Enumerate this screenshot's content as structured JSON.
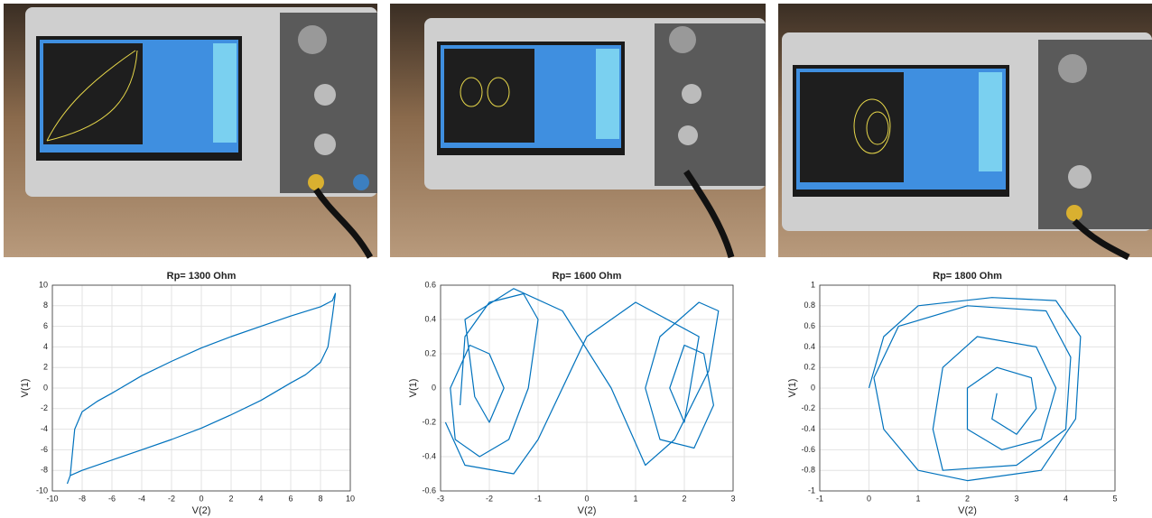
{
  "chart_data": [
    {
      "type": "line",
      "title": "Rp= 1300 Ohm",
      "x_label": "V(2)",
      "y_label": "V(1)",
      "x": [
        -9,
        -8.8,
        -8.5,
        -8,
        -7,
        -6,
        -4,
        -2,
        0,
        2,
        4,
        6,
        8,
        8.8,
        9,
        8.8,
        8.5,
        8,
        7,
        6,
        4,
        2,
        0,
        -2,
        -4,
        -6,
        -8,
        -8.8,
        -9
      ],
      "series": [
        {
          "name": "V(1)",
          "color": "#0072bd",
          "values": [
            -9.3,
            -8.5,
            -4,
            -2.3,
            -1.3,
            -0.5,
            1.2,
            2.6,
            3.9,
            5,
            6,
            7,
            7.9,
            8.5,
            9.2,
            7,
            4,
            2.5,
            1.3,
            0.5,
            -1.2,
            -2.6,
            -3.9,
            -5,
            -6,
            -7,
            -8,
            -8.5,
            -9.3
          ]
        }
      ],
      "xlim": [
        -10,
        10
      ],
      "xticks": [
        -10,
        -8,
        -6,
        -4,
        -2,
        0,
        2,
        4,
        6,
        8,
        10
      ],
      "ylim": [
        -10,
        10
      ],
      "yticks": [
        -10,
        -8,
        -6,
        -4,
        -2,
        0,
        2,
        4,
        6,
        8,
        10
      ],
      "grid": true
    },
    {
      "type": "line",
      "title": "Rp= 1600 Ohm",
      "x_label": "V(2)",
      "y_label": "V(1)",
      "x": [
        -2.6,
        -2.5,
        -2,
        -1.3,
        -1,
        -1.2,
        -1.6,
        -2.2,
        -2.7,
        -2.8,
        -2.4,
        -2,
        -1.7,
        -2,
        -2.3,
        -2.5,
        -1.5,
        -0.5,
        0.5,
        1.2,
        1.8,
        2.5,
        2.7,
        2.3,
        1.5,
        1.2,
        1.5,
        2.2,
        2.6,
        2.4,
        2,
        1.7,
        2,
        2.3,
        1,
        0,
        -1,
        -1.5,
        -2.5,
        -2.9
      ],
      "series": [
        {
          "name": "V(1)",
          "color": "#0072bd",
          "values": [
            -0.1,
            0.3,
            0.5,
            0.55,
            0.4,
            0,
            -0.3,
            -0.4,
            -0.3,
            0,
            0.25,
            0.2,
            0,
            -0.2,
            -0.05,
            0.4,
            0.58,
            0.45,
            0,
            -0.45,
            -0.3,
            0.1,
            0.45,
            0.5,
            0.3,
            0,
            -0.3,
            -0.35,
            -0.1,
            0.2,
            0.25,
            0,
            -0.2,
            0.3,
            0.5,
            0.3,
            -0.3,
            -0.5,
            -0.45,
            -0.2
          ]
        }
      ],
      "xlim": [
        -3,
        3
      ],
      "xticks": [
        -3,
        -2,
        -1,
        0,
        1,
        2,
        3
      ],
      "ylim": [
        -0.6,
        0.6
      ],
      "yticks": [
        -0.6,
        -0.4,
        -0.2,
        0,
        0.2,
        0.4,
        0.6
      ],
      "grid": true
    },
    {
      "type": "line",
      "title": "Rp= 1800 Ohm",
      "x_label": "V(2)",
      "y_label": "V(1)",
      "x": [
        0,
        0.3,
        1,
        2.5,
        3.8,
        4.3,
        4.2,
        3.5,
        2,
        1,
        0.3,
        0.1,
        0.6,
        2,
        3.6,
        4.1,
        4,
        3,
        1.5,
        1.3,
        1.5,
        2.2,
        3.4,
        3.8,
        3.5,
        2.7,
        2,
        2,
        2.6,
        3.3,
        3.4,
        3,
        2.5,
        2.6
      ],
      "series": [
        {
          "name": "V(1)",
          "color": "#0072bd",
          "values": [
            0,
            0.5,
            0.8,
            0.88,
            0.85,
            0.5,
            -0.3,
            -0.8,
            -0.9,
            -0.8,
            -0.4,
            0.1,
            0.6,
            0.8,
            0.75,
            0.3,
            -0.4,
            -0.75,
            -0.8,
            -0.4,
            0.2,
            0.5,
            0.4,
            0,
            -0.5,
            -0.6,
            -0.4,
            0,
            0.2,
            0.1,
            -0.2,
            -0.45,
            -0.3,
            -0.05
          ]
        }
      ],
      "xlim": [
        -1,
        5
      ],
      "xticks": [
        -1,
        0,
        1,
        2,
        3,
        4,
        5
      ],
      "ylim": [
        -1,
        1
      ],
      "yticks": [
        -1,
        -0.8,
        -0.6,
        -0.4,
        -0.2,
        0,
        0.2,
        0.4,
        0.6,
        0.8,
        1
      ],
      "grid": true
    }
  ]
}
